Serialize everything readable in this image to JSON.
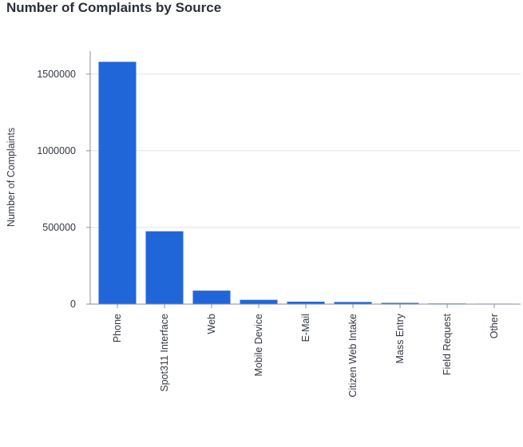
{
  "chart_data": {
    "type": "bar",
    "title": "Number of Complaints by Source",
    "xlabel": "",
    "ylabel": "Number of Complaints",
    "categories": [
      "Phone",
      "Spot311 Interface",
      "Web",
      "Mobile Device",
      "E-Mail",
      "Citizen Web Intake",
      "Mass Entry",
      "Field Request",
      "Other"
    ],
    "values": [
      1580000,
      475000,
      88000,
      28000,
      16000,
      14000,
      8000,
      4000,
      3000
    ],
    "ylim": [
      0,
      1650000
    ],
    "yticks": [
      0,
      500000,
      1000000,
      1500000
    ],
    "ytick_labels": [
      "0",
      "500000",
      "1000000",
      "1500000"
    ],
    "grid": true,
    "colors": {
      "bar": "#2166d9",
      "grid": "#dfe1e5",
      "axis": "#8a8f99"
    }
  }
}
